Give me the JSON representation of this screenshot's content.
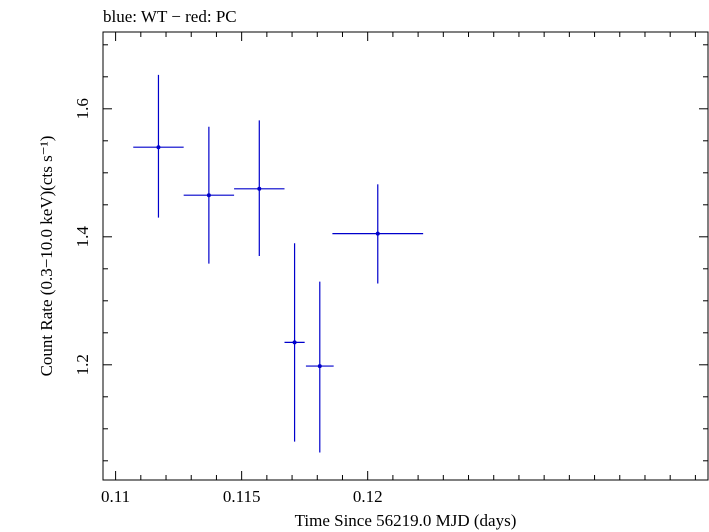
{
  "chart_data": {
    "type": "scatter",
    "title": "blue: WT − red: PC",
    "xlabel": "Time Since 56219.0 MJD (days)",
    "ylabel": "Count Rate (0.3−10.0 keV)(cts s⁻¹)",
    "xlim": [
      0.1095,
      0.1335
    ],
    "ylim": [
      1.02,
      1.72
    ],
    "xticks": [
      {
        "value": 0.11,
        "label": "0.11"
      },
      {
        "value": 0.115,
        "label": "0.115"
      },
      {
        "value": 0.12,
        "label": "0.12"
      }
    ],
    "yticks": [
      {
        "value": 1.2,
        "label": "1.2"
      },
      {
        "value": 1.4,
        "label": "1.4"
      },
      {
        "value": 1.6,
        "label": "1.6"
      }
    ],
    "series": [
      {
        "color": "#0000cc",
        "points": [
          {
            "x": 0.1117,
            "y": 1.54,
            "xerr": 0.001,
            "yerr_lo": 0.11,
            "yerr_hi": 0.113
          },
          {
            "x": 0.1137,
            "y": 1.465,
            "xerr": 0.001,
            "yerr_lo": 0.107,
            "yerr_hi": 0.107
          },
          {
            "x": 0.1157,
            "y": 1.475,
            "xerr": 0.001,
            "yerr_lo": 0.105,
            "yerr_hi": 0.107
          },
          {
            "x": 0.1171,
            "y": 1.235,
            "xerr": 0.0004,
            "yerr_lo": 0.155,
            "yerr_hi": 0.155
          },
          {
            "x": 0.1181,
            "y": 1.198,
            "xerr": 0.00055,
            "yerr_lo": 0.135,
            "yerr_hi": 0.132
          },
          {
            "x": 0.1204,
            "y": 1.405,
            "xerr": 0.0018,
            "yerr_lo": 0.078,
            "yerr_hi": 0.077
          }
        ]
      }
    ]
  }
}
